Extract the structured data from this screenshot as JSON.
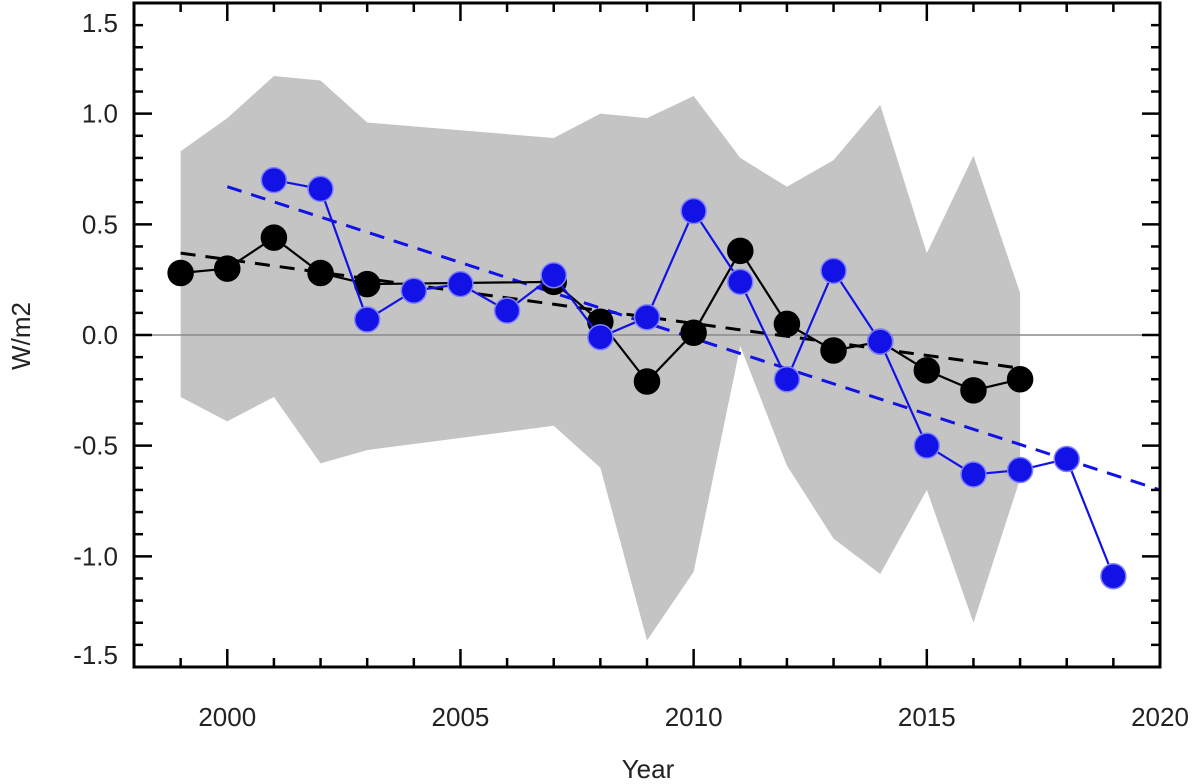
{
  "chart_data": {
    "type": "line",
    "title": "",
    "xlabel": "Year",
    "ylabel": "W/m2",
    "xlim": [
      1998,
      2020
    ],
    "ylim": [
      -1.5,
      1.5
    ],
    "x_ticks": [
      "2000",
      "2005",
      "2010",
      "2015",
      "2020"
    ],
    "y_ticks": [
      "1.5",
      "1.0",
      "0.5",
      "0.0",
      "-0.5",
      "-1.0",
      "-1.5"
    ],
    "grid": false,
    "legend": "none",
    "reference_line_y": 0.0,
    "band": {
      "color": "#c4c4c4",
      "x": [
        1999,
        2000,
        2001,
        2002,
        2003,
        2007,
        2008,
        2009,
        2010,
        2011,
        2012,
        2013,
        2014,
        2015,
        2016,
        2017
      ],
      "upper": [
        0.83,
        0.98,
        1.17,
        1.15,
        0.96,
        0.89,
        1.0,
        0.98,
        1.08,
        0.8,
        0.67,
        0.79,
        1.04,
        0.37,
        0.81,
        0.19
      ],
      "lower": [
        -0.28,
        -0.39,
        -0.28,
        -0.58,
        -0.52,
        -0.41,
        -0.6,
        -1.38,
        -1.07,
        -0.05,
        -0.59,
        -0.92,
        -1.08,
        -0.7,
        -1.3,
        -0.65
      ]
    },
    "series": [
      {
        "color": "#000000",
        "x": [
          1999,
          2000,
          2001,
          2002,
          2003,
          2007,
          2008,
          2009,
          2010,
          2011,
          2012,
          2013,
          2014,
          2015,
          2016,
          2017
        ],
        "y": [
          0.28,
          0.3,
          0.44,
          0.28,
          0.23,
          0.24,
          0.06,
          -0.21,
          0.01,
          0.38,
          0.05,
          -0.07,
          -0.03,
          -0.16,
          -0.25,
          -0.2
        ],
        "trend": {
          "x": [
            1999,
            2017
          ],
          "y": [
            0.37,
            -0.15
          ]
        }
      },
      {
        "color": "#1212e6",
        "x": [
          2001,
          2002,
          2003,
          2004,
          2005,
          2006,
          2007,
          2008,
          2009,
          2010,
          2011,
          2012,
          2013,
          2014,
          2015,
          2016,
          2017,
          2018,
          2019
        ],
        "y": [
          0.7,
          0.66,
          0.07,
          0.2,
          0.23,
          0.11,
          0.27,
          -0.01,
          0.08,
          0.56,
          0.24,
          -0.2,
          0.29,
          -0.03,
          -0.5,
          -0.63,
          -0.61,
          -0.56,
          -1.09
        ],
        "trend": {
          "x": [
            2000,
            2020
          ],
          "y": [
            0.67,
            -0.7
          ]
        }
      }
    ]
  }
}
